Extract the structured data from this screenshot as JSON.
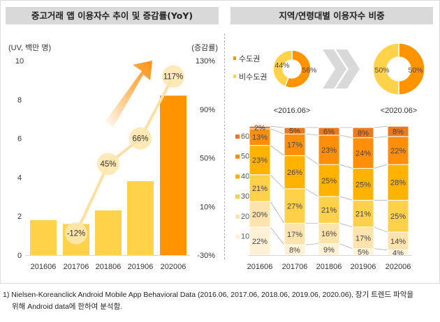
{
  "left_panel": {
    "title": "중고거래 앱 이용자수 추이 및 증감률(YoY)"
  },
  "right_panel": {
    "title": "지역/연령대별 이용자수 비중"
  },
  "footnote": {
    "line1": "1) Nielsen-Koreanclick Android Mobile App Behavioral Data (2016.06, 2017.06, 2018.06, 2019.06, 2020.06),  장기 트렌드 파악을",
    "line2": "위해 Android data에 한하여 분석함."
  },
  "colors": {
    "bar_normal": "#FFD24A",
    "bar_highlight": "#FF9300",
    "yoy_circle": "#FFE7B0",
    "yoy_line": "#FFDFA0",
    "arrow": "#FF9A1E",
    "capital": "#FF9300",
    "non_capital": "#FFD24A",
    "age_60": "#E97A1F",
    "age_50": "#FF8F0A",
    "age_40": "#FFB300",
    "age_30": "#FFD04A",
    "age_20": "#FFE3AC",
    "age_10": "#FFF1D6",
    "chevron": "#d9d9d9"
  },
  "chart_data": [
    {
      "type": "bar",
      "title": "중고거래 앱 이용자수 추이 및 증감률(YoY)",
      "ylabel": "(UV, 백만 명)",
      "y2label": "(증감률)",
      "categories": [
        "201606",
        "201706",
        "201806",
        "201906",
        "202006"
      ],
      "ylim": [
        0,
        10
      ],
      "yticks": [
        0,
        2,
        4,
        6,
        8,
        10
      ],
      "y2lim": [
        -30,
        130
      ],
      "y2ticks": [
        "-30%",
        "10%",
        "50%",
        "90%",
        "130%"
      ],
      "series": [
        {
          "name": "UV (백만 명)",
          "type": "bar",
          "values": [
            1.8,
            1.6,
            2.3,
            3.8,
            8.2
          ],
          "highlight_index": 4
        },
        {
          "name": "증감률(YoY)",
          "type": "line",
          "axis": "right",
          "categories": [
            "201706",
            "201806",
            "201906",
            "202006"
          ],
          "values": [
            -12,
            45,
            66,
            117
          ],
          "labels": [
            "-12%",
            "45%",
            "66%",
            "117%"
          ]
        }
      ],
      "grid": false
    },
    {
      "type": "pie",
      "subtype": "donut",
      "title": "<2016.06>",
      "legend": [
        "수도권",
        "비수도권"
      ],
      "values": [
        56,
        44
      ],
      "labels": [
        "56%",
        "44%"
      ]
    },
    {
      "type": "pie",
      "subtype": "donut",
      "title": "<2020.06>",
      "legend": [
        "수도권",
        "비수도권"
      ],
      "values": [
        50,
        50
      ],
      "labels": [
        "50%",
        "50%"
      ]
    },
    {
      "type": "bar",
      "subtype": "stacked-100",
      "title": "지역/연령대별 이용자수 비중",
      "categories": [
        "201606",
        "201706",
        "201806",
        "201906",
        "202006"
      ],
      "legend_position": "left",
      "series": [
        {
          "name": "10대",
          "values": [
            22,
            8,
            9,
            5,
            4
          ]
        },
        {
          "name": "20대",
          "values": [
            20,
            17,
            16,
            17,
            14
          ]
        },
        {
          "name": "30대",
          "values": [
            21,
            27,
            21,
            21,
            25
          ]
        },
        {
          "name": "40대",
          "values": [
            23,
            26,
            25,
            25,
            28
          ]
        },
        {
          "name": "50대",
          "values": [
            13,
            17,
            23,
            24,
            22
          ]
        },
        {
          "name": "60대",
          "values": [
            2,
            5,
            6,
            8,
            8
          ]
        }
      ]
    }
  ]
}
